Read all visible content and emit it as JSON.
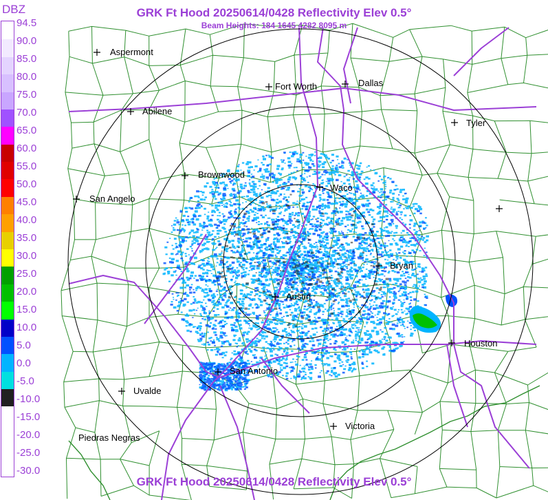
{
  "header": {
    "title": "GRK Ft Hood 20250614/0428 Reflectivity Elev 0.5°",
    "beam_heights": "Beam Heights: 184 1645 4282 8095 m"
  },
  "footer": {
    "title": "GRK Ft Hood 20250614/0428 Reflectivity Elev 0.5°"
  },
  "legend": {
    "title": "DBZ",
    "labels": [
      "94.5",
      "90.0",
      "85.0",
      "80.0",
      "75.0",
      "70.0",
      "65.0",
      "60.0",
      "55.0",
      "50.0",
      "45.0",
      "40.0",
      "35.0",
      "30.0",
      "25.0",
      "20.0",
      "15.0",
      "10.0",
      "5.0",
      "0.0",
      "-5.0",
      "-10.0",
      "-15.0",
      "-20.0",
      "-25.0",
      "-30.0"
    ],
    "colors": [
      "#ffffff",
      "#f2eaff",
      "#e4d4ff",
      "#d8c0ff",
      "#c9a6ff",
      "#a052ff",
      "#ff00ff",
      "#c80000",
      "#e00000",
      "#ff0000",
      "#ff8000",
      "#ffa000",
      "#e8d000",
      "#ffff00",
      "#00a000",
      "#00c000",
      "#00ff00",
      "#0000c8",
      "#0050ff",
      "#00b4ff",
      "#00e0e0",
      "#202020",
      "#ffffff",
      "#ffffff",
      "#ffffff",
      "#ffffff"
    ],
    "text_color": "#9b3fd6"
  },
  "map": {
    "cities": [
      {
        "name": "Aspermont",
        "marker": "plus"
      },
      {
        "name": "Fort Worth",
        "marker": "plus"
      },
      {
        "name": "Dallas",
        "marker": "plus"
      },
      {
        "name": "Abilene",
        "marker": "plus"
      },
      {
        "name": "Tyler",
        "marker": "plus"
      },
      {
        "name": "Brownwood",
        "marker": "plus"
      },
      {
        "name": "Waco",
        "marker": "plus"
      },
      {
        "name": "San Angelo",
        "marker": "plus"
      },
      {
        "name": "Bryan",
        "marker": "plus"
      },
      {
        "name": "Austin",
        "marker": "plus"
      },
      {
        "name": "Houston",
        "marker": "plus"
      },
      {
        "name": "San Antonio",
        "marker": "plus"
      },
      {
        "name": "Uvalde",
        "marker": "plus"
      },
      {
        "name": "Victoria",
        "marker": "plus"
      },
      {
        "name": "Piedras Negras",
        "marker": "none"
      },
      {
        "name": "",
        "marker": "plus"
      }
    ],
    "colors": {
      "county_lines": "#2f8f2f",
      "highways": "#9b3fd6",
      "range_rings": "#000000",
      "echo_light": "#00b4ff",
      "echo_medium": "#0050ff",
      "echo_strong": "#00c000"
    }
  }
}
